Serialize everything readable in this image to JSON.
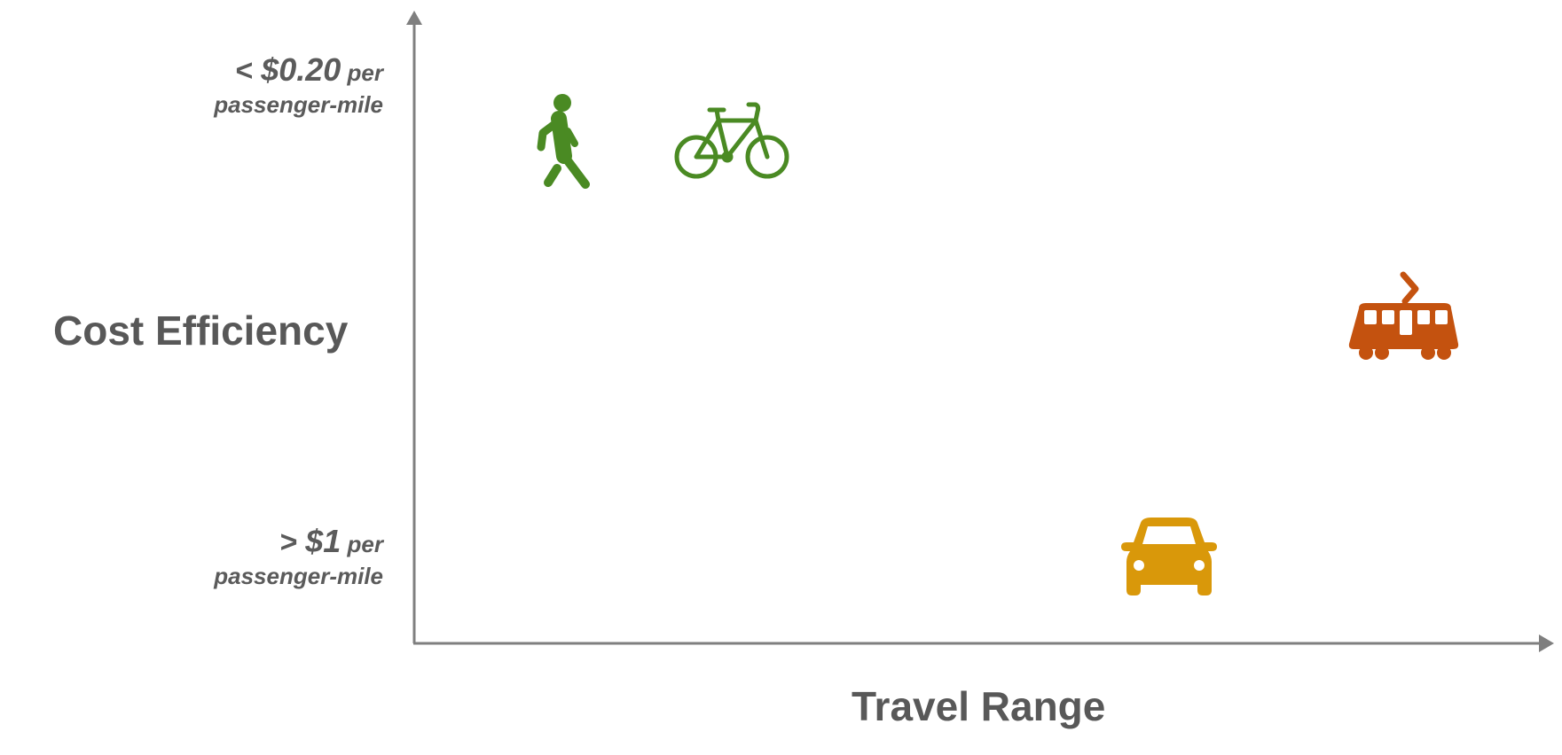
{
  "diagram": {
    "y_axis": {
      "title": "Cost Efficiency",
      "top_label": {
        "prefix": "< ",
        "amount": "$0.20",
        "suffix": " per",
        "line2": "passenger-mile"
      },
      "bottom_label": {
        "prefix": "> ",
        "amount": "$1",
        "suffix": " per",
        "line2": "passenger-mile"
      }
    },
    "x_axis": {
      "title": "Travel Range"
    },
    "modes": [
      {
        "icon": "walking-person-icon",
        "color": "#4a8a23"
      },
      {
        "icon": "bicycle-icon",
        "color": "#4a8a23"
      },
      {
        "icon": "tram-icon",
        "color": "#c4520f"
      },
      {
        "icon": "car-icon",
        "color": "#d9980a"
      }
    ],
    "axis_color": "#7f7f7f"
  }
}
